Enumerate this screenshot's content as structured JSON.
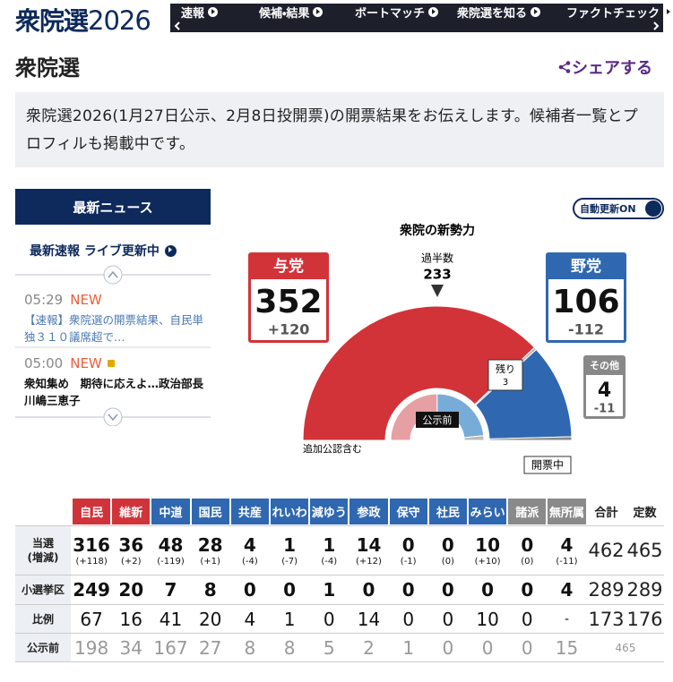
{
  "header": {
    "logo": "衆院選",
    "year": "2026",
    "nav": [
      "速報",
      "候補・結果",
      "ボートマッチ",
      "衆院選を知る",
      "ファクトチェック"
    ]
  },
  "page_title": "衆院選",
  "share": "シェアする",
  "intro": "衆院選2026(1月27日公示、2月8日投開票)の開票結果をお伝えします。候補者一覧とプロフィルも掲載中です。",
  "news": {
    "heading": "最新ニュース",
    "live": "最新速報 ライブ更新中",
    "items": [
      {
        "time": "05:29",
        "tag": "NEW",
        "text": "【速報】衆院選の開票結果、自民単独３１０議席超で…"
      },
      {
        "time": "05:00",
        "tag": "NEW",
        "text": "衆知集め　期待に応えよ…政治部長　川嶋三恵子"
      }
    ]
  },
  "auto_update": "自動更新ON",
  "chart_data": {
    "type": "semicircle",
    "title": "衆院の新勢力",
    "majority_label": "過半数",
    "majority": 233,
    "blocs": [
      {
        "name": "与党",
        "seats": 352,
        "change": "+120",
        "previous": 232,
        "color": "#d23339",
        "previous_color": "#e6a0a3"
      },
      {
        "name": "野党",
        "seats": 106,
        "change": "-112",
        "previous": 218,
        "color": "#2f68b0",
        "previous_color": "#78acd8"
      },
      {
        "name": "その他",
        "seats": 4,
        "change": "-11",
        "previous": 15,
        "color": "#888888",
        "previous_color": "#bbbbbb"
      }
    ],
    "remaining": {
      "label": "残り",
      "seats": 3,
      "color": "#b5b5b5"
    },
    "inner_label": "公示前",
    "note": "追加公認含む",
    "status": "開票中"
  },
  "table": {
    "columns": [
      {
        "name": "自民",
        "color": "#d0343a"
      },
      {
        "name": "維新",
        "color": "#d0343a"
      },
      {
        "name": "中道",
        "color": "#2f68b0"
      },
      {
        "name": "国民",
        "color": "#2f68b0"
      },
      {
        "name": "共産",
        "color": "#2f68b0"
      },
      {
        "name": "れいわ",
        "color": "#2f68b0"
      },
      {
        "name": "減ゆう",
        "color": "#2f68b0"
      },
      {
        "name": "参政",
        "color": "#2f68b0"
      },
      {
        "name": "保守",
        "color": "#2f68b0"
      },
      {
        "name": "社民",
        "color": "#2f68b0"
      },
      {
        "name": "みらい",
        "color": "#2f68b0"
      },
      {
        "name": "諸派",
        "color": "#8a8a8a"
      },
      {
        "name": "無所属",
        "color": "#8a8a8a"
      }
    ],
    "total_header": "合計",
    "fixed_header": "定数",
    "rows": [
      {
        "label": [
          "当選",
          "(増減)"
        ],
        "cells": [
          {
            "value": 316,
            "change": "(+118)"
          },
          {
            "value": 36,
            "change": "(+2)"
          },
          {
            "value": 48,
            "change": "(-119)"
          },
          {
            "value": 28,
            "change": "(+1)"
          },
          {
            "value": 4,
            "change": "(-4)"
          },
          {
            "value": 1,
            "change": "(-7)"
          },
          {
            "value": 1,
            "change": "(-4)"
          },
          {
            "value": 14,
            "change": "(+12)"
          },
          {
            "value": 0,
            "change": "(-1)"
          },
          {
            "value": 0,
            "change": "(0)"
          },
          {
            "value": 10,
            "change": "(+10)"
          },
          {
            "value": 0,
            "change": "(0)"
          },
          {
            "value": 4,
            "change": "(-11)"
          }
        ],
        "total": 462,
        "fixed": 465
      },
      {
        "label": [
          "小選挙区"
        ],
        "cells": [
          249,
          20,
          7,
          8,
          0,
          0,
          1,
          0,
          0,
          0,
          0,
          0,
          4
        ],
        "total": 289,
        "fixed": 289
      },
      {
        "label": [
          "比例"
        ],
        "cells": [
          67,
          16,
          41,
          20,
          4,
          1,
          0,
          14,
          0,
          0,
          10,
          0,
          "-"
        ],
        "total": 173,
        "fixed": 176
      },
      {
        "label": [
          "公示前"
        ],
        "cells": [
          198,
          34,
          167,
          27,
          8,
          8,
          5,
          2,
          1,
          0,
          0,
          0,
          15
        ],
        "total": 465
      }
    ]
  }
}
